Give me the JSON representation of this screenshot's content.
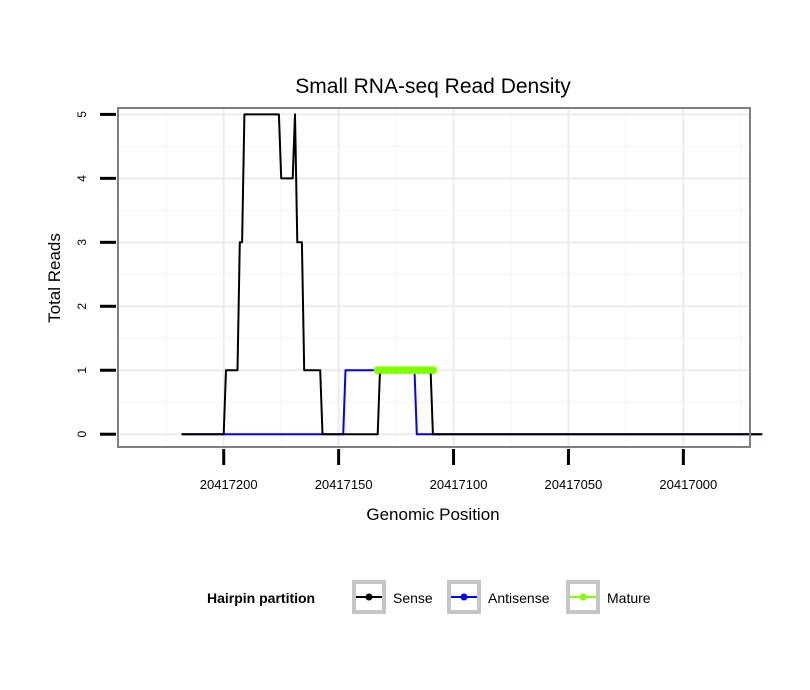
{
  "chart_data": {
    "type": "line",
    "title": "Small RNA-seq Read Density",
    "xlabel": "Genomic Position",
    "ylabel": "Total Reads",
    "x_reversed": true,
    "xlim": [
      20416971,
      20417246
    ],
    "ylim": [
      -0.2,
      5.1
    ],
    "x_ticks": [
      20417200,
      20417150,
      20417100,
      20417050,
      20417000
    ],
    "x_tick_labels": [
      "20417200",
      "20417150",
      "20417100",
      "20417050",
      "20417000"
    ],
    "y_ticks": [
      0,
      1,
      2,
      3,
      4,
      5
    ],
    "y_tick_labels": [
      "0",
      "1",
      "2",
      "3",
      "4",
      "5"
    ],
    "grid": true,
    "legend": {
      "title": "Hairpin partition",
      "position": "bottom",
      "entries": [
        "Sense",
        "Antisense",
        "Mature"
      ]
    },
    "series": [
      {
        "name": "Sense",
        "color": "#000000",
        "x": [
          20417218,
          20417200,
          20417199,
          20417194,
          20417193,
          20417192,
          20417191,
          20417190,
          20417176,
          20417175,
          20417170,
          20417169,
          20417168,
          20417167,
          20417166,
          20417165,
          20417158,
          20417157,
          20417148,
          20417147,
          20417133,
          20417132,
          20417110,
          20417109,
          20416966
        ],
        "values": [
          0,
          0,
          1,
          1,
          3,
          3,
          5,
          5,
          5,
          4,
          4,
          5,
          3,
          3,
          3,
          1,
          1,
          0,
          0,
          0,
          0,
          1,
          1,
          0,
          0
        ]
      },
      {
        "name": "Antisense",
        "color": "#0000ff",
        "x": [
          20417218,
          20417148,
          20417147,
          20417134,
          20417133,
          20417117,
          20417116,
          20416966
        ],
        "values": [
          0,
          0,
          1,
          1,
          1,
          1,
          0,
          0
        ]
      },
      {
        "name": "Mature",
        "color": "#7fff00",
        "x": [
          20417133,
          20417131,
          20417129,
          20417127,
          20417125,
          20417123,
          20417121,
          20417119,
          20417117,
          20417115,
          20417113,
          20417111,
          20417109
        ],
        "values": [
          1,
          1,
          1,
          1,
          1,
          1,
          1,
          1,
          1,
          1,
          1,
          1,
          1
        ]
      }
    ]
  }
}
